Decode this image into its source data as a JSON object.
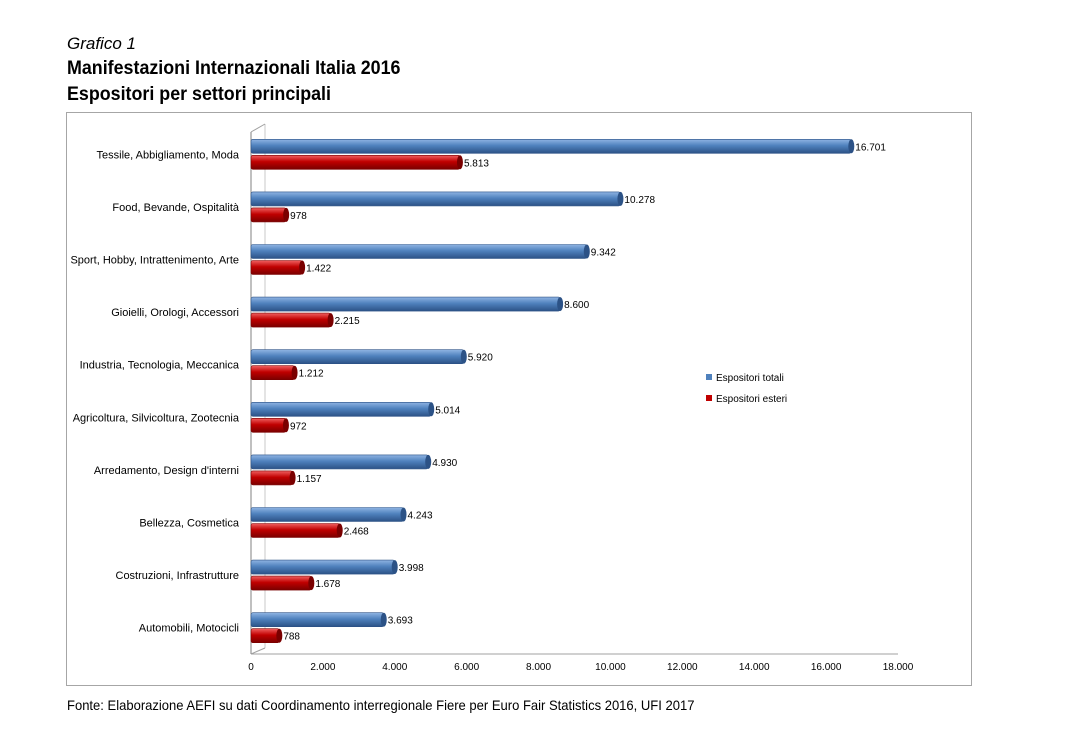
{
  "header": {
    "label": "Grafico 1",
    "title": "Manifestazioni Internazionali Italia 2016",
    "subtitle": "Espositori per settori principali"
  },
  "source": "Fonte: Elaborazione AEFI su dati Coordinamento interregionale Fiere per Euro Fair Statistics 2016, UFI 2017",
  "colors": {
    "totali": "#4f81bd",
    "esteri": "#c00000"
  },
  "chart_data": {
    "type": "bar",
    "orientation": "horizontal",
    "categories": [
      "Tessile, Abbigliamento, Moda",
      "Food, Bevande, Ospitalità",
      "Sport, Hobby, Intrattenimento, Arte",
      "Gioielli, Orologi, Accessori",
      "Industria, Tecnologia, Meccanica",
      "Agricoltura, Silvicoltura, Zootecnia",
      "Arredamento, Design d'interni",
      "Bellezza, Cosmetica",
      "Costruzioni, Infrastrutture",
      "Automobili, Motocicli"
    ],
    "series": [
      {
        "name": "Espositori totali",
        "values": [
          16701,
          10278,
          9342,
          8600,
          5920,
          5014,
          4930,
          4243,
          3998,
          3693
        ],
        "labels": [
          "16.701",
          "10.278",
          "9.342",
          "8.600",
          "5.920",
          "5.014",
          "4.930",
          "4.243",
          "3.998",
          "3.693"
        ]
      },
      {
        "name": "Espositori esteri",
        "values": [
          5813,
          978,
          1422,
          2215,
          1212,
          972,
          1157,
          2468,
          1678,
          788
        ],
        "labels": [
          "5.813",
          "978",
          "1.422",
          "2.215",
          "1.212",
          "972",
          "1.157",
          "2.468",
          "1.678",
          "788"
        ]
      }
    ],
    "xlim": [
      0,
      18000
    ],
    "xticks": [
      0,
      2000,
      4000,
      6000,
      8000,
      10000,
      12000,
      14000,
      16000,
      18000
    ],
    "xtick_labels": [
      "0",
      "2.000",
      "4.000",
      "6.000",
      "8.000",
      "10.000",
      "12.000",
      "14.000",
      "16.000",
      "18.000"
    ],
    "grid": false,
    "legend_position": "right"
  }
}
